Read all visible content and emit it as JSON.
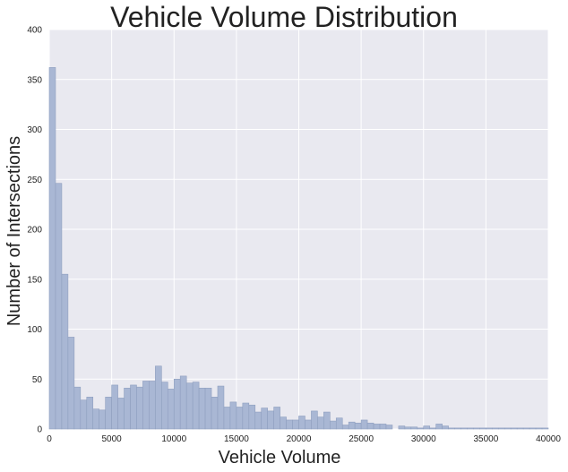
{
  "chart_data": {
    "type": "bar",
    "title": "Vehicle Volume Distribution",
    "xlabel": "Vehicle Volume",
    "ylabel": "Number of Intersections",
    "xlim": [
      0,
      40000
    ],
    "ylim": [
      0,
      400
    ],
    "x_ticks": [
      "0",
      "5000",
      "10000",
      "15000",
      "20000",
      "25000",
      "30000",
      "35000",
      "40000"
    ],
    "y_ticks": [
      "0",
      "50",
      "100",
      "150",
      "200",
      "250",
      "300",
      "350",
      "400"
    ],
    "grid": true,
    "bin_width": 500,
    "bins": [
      {
        "start": 0,
        "value": 362
      },
      {
        "start": 500,
        "value": 246
      },
      {
        "start": 1000,
        "value": 155
      },
      {
        "start": 1500,
        "value": 92
      },
      {
        "start": 2000,
        "value": 42
      },
      {
        "start": 2500,
        "value": 29
      },
      {
        "start": 3000,
        "value": 32
      },
      {
        "start": 3500,
        "value": 20
      },
      {
        "start": 4000,
        "value": 19
      },
      {
        "start": 4500,
        "value": 32
      },
      {
        "start": 5000,
        "value": 44
      },
      {
        "start": 5500,
        "value": 31
      },
      {
        "start": 6000,
        "value": 41
      },
      {
        "start": 6500,
        "value": 44
      },
      {
        "start": 7000,
        "value": 42
      },
      {
        "start": 7500,
        "value": 48
      },
      {
        "start": 8000,
        "value": 48
      },
      {
        "start": 8500,
        "value": 63
      },
      {
        "start": 9000,
        "value": 47
      },
      {
        "start": 9500,
        "value": 40
      },
      {
        "start": 10000,
        "value": 50
      },
      {
        "start": 10500,
        "value": 53
      },
      {
        "start": 11000,
        "value": 46
      },
      {
        "start": 11500,
        "value": 47
      },
      {
        "start": 12000,
        "value": 41
      },
      {
        "start": 12500,
        "value": 41
      },
      {
        "start": 13000,
        "value": 32
      },
      {
        "start": 13500,
        "value": 43
      },
      {
        "start": 14000,
        "value": 22
      },
      {
        "start": 14500,
        "value": 27
      },
      {
        "start": 15000,
        "value": 22
      },
      {
        "start": 15500,
        "value": 26
      },
      {
        "start": 16000,
        "value": 24
      },
      {
        "start": 16500,
        "value": 17
      },
      {
        "start": 17000,
        "value": 21
      },
      {
        "start": 17500,
        "value": 18
      },
      {
        "start": 18000,
        "value": 22
      },
      {
        "start": 18500,
        "value": 12
      },
      {
        "start": 19000,
        "value": 9
      },
      {
        "start": 19500,
        "value": 9
      },
      {
        "start": 20000,
        "value": 13
      },
      {
        "start": 20500,
        "value": 9
      },
      {
        "start": 21000,
        "value": 18
      },
      {
        "start": 21500,
        "value": 12
      },
      {
        "start": 22000,
        "value": 17
      },
      {
        "start": 22500,
        "value": 8
      },
      {
        "start": 23000,
        "value": 11
      },
      {
        "start": 23500,
        "value": 4
      },
      {
        "start": 24000,
        "value": 7
      },
      {
        "start": 24500,
        "value": 6
      },
      {
        "start": 25000,
        "value": 9
      },
      {
        "start": 25500,
        "value": 6
      },
      {
        "start": 26000,
        "value": 5
      },
      {
        "start": 26500,
        "value": 5
      },
      {
        "start": 27000,
        "value": 4
      },
      {
        "start": 27500,
        "value": 0
      },
      {
        "start": 28000,
        "value": 3
      },
      {
        "start": 28500,
        "value": 2
      },
      {
        "start": 29000,
        "value": 2
      },
      {
        "start": 29500,
        "value": 1
      },
      {
        "start": 30000,
        "value": 3
      },
      {
        "start": 30500,
        "value": 1
      },
      {
        "start": 31000,
        "value": 5
      },
      {
        "start": 31500,
        "value": 3
      },
      {
        "start": 32000,
        "value": 1
      },
      {
        "start": 32500,
        "value": 1
      },
      {
        "start": 33000,
        "value": 1
      },
      {
        "start": 33500,
        "value": 1
      },
      {
        "start": 34000,
        "value": 1
      },
      {
        "start": 34500,
        "value": 1
      },
      {
        "start": 35000,
        "value": 1
      },
      {
        "start": 35500,
        "value": 1
      },
      {
        "start": 36000,
        "value": 1
      },
      {
        "start": 36500,
        "value": 1
      },
      {
        "start": 37000,
        "value": 1
      },
      {
        "start": 37500,
        "value": 1
      },
      {
        "start": 38000,
        "value": 1
      },
      {
        "start": 38500,
        "value": 1
      },
      {
        "start": 39000,
        "value": 1
      },
      {
        "start": 39500,
        "value": 1
      }
    ]
  },
  "colors": {
    "plot_background": "#e9e9f0",
    "bar_fill": "#a9b7d4",
    "bar_edge": "#8f9fbf",
    "grid": "#ffffff"
  }
}
